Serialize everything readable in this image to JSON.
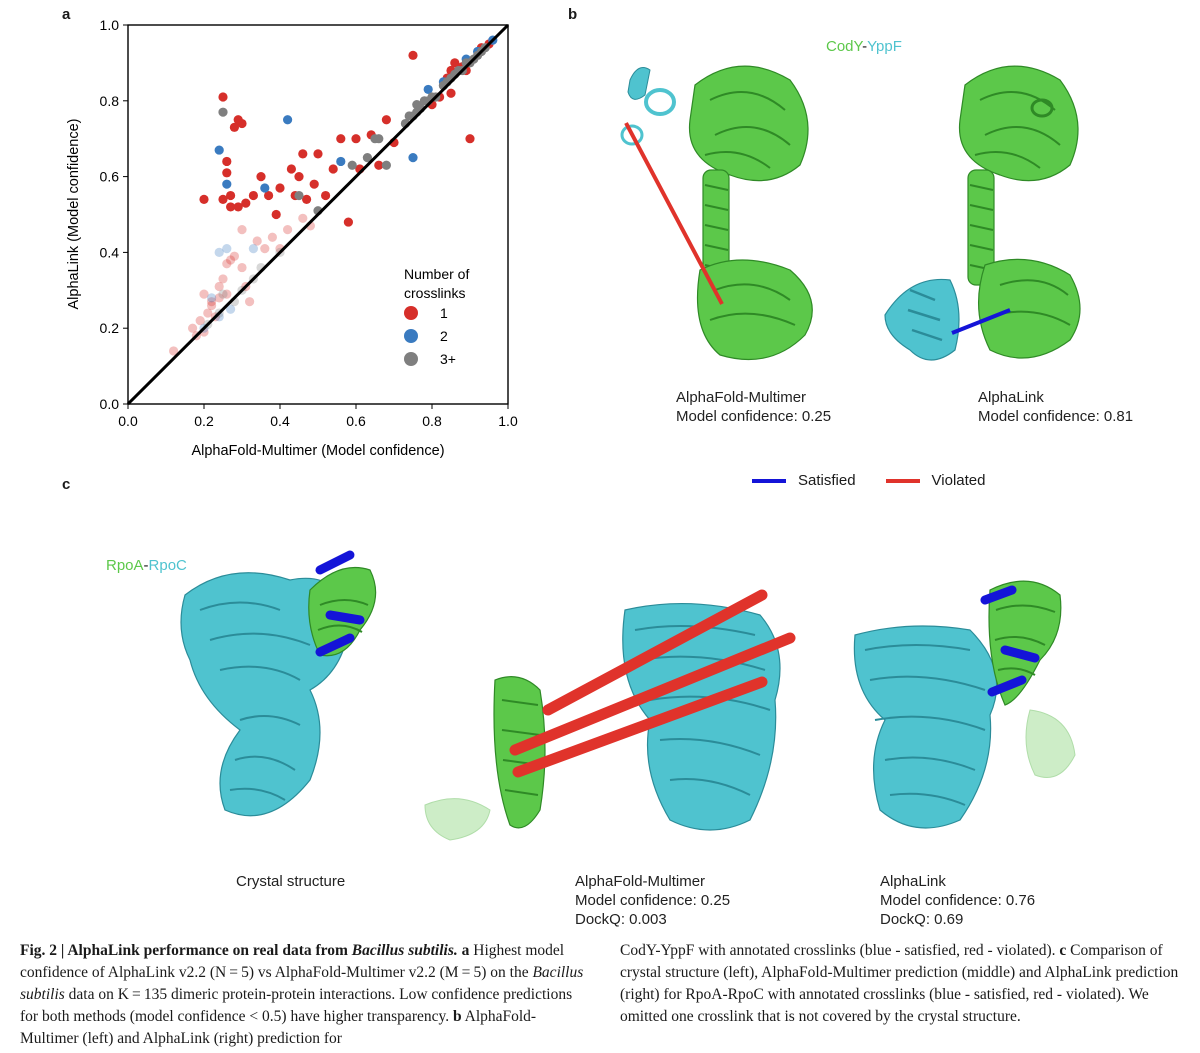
{
  "panel_labels": {
    "a": "a",
    "b": "b",
    "c": "c"
  },
  "chart_data": {
    "type": "scatter",
    "xlabel": "AlphaFold-Multimer (Model confidence)",
    "ylabel": "AlphaLink (Model confidence)",
    "xlim": [
      0.0,
      1.0
    ],
    "ylim": [
      0.0,
      1.0
    ],
    "xticks": [
      "0.0",
      "0.2",
      "0.4",
      "0.6",
      "0.8",
      "1.0"
    ],
    "yticks": [
      "0.0",
      "0.2",
      "0.4",
      "0.6",
      "0.8",
      "1.0"
    ],
    "diagonal": true,
    "legend": {
      "title": "Number of crosslinks",
      "entries": [
        "1",
        "2",
        "3+"
      ],
      "placement": "bottom-right"
    },
    "series": [
      {
        "name": "1",
        "color": "#d62f2a",
        "points": [
          [
            0.25,
            0.81
          ],
          [
            0.2,
            0.54
          ],
          [
            0.25,
            0.54
          ],
          [
            0.26,
            0.61
          ],
          [
            0.26,
            0.64
          ],
          [
            0.28,
            0.73
          ],
          [
            0.3,
            0.74
          ],
          [
            0.29,
            0.75
          ],
          [
            0.27,
            0.55
          ],
          [
            0.33,
            0.55
          ],
          [
            0.31,
            0.53
          ],
          [
            0.35,
            0.6
          ],
          [
            0.37,
            0.55
          ],
          [
            0.39,
            0.5
          ],
          [
            0.4,
            0.57
          ],
          [
            0.43,
            0.62
          ],
          [
            0.44,
            0.55
          ],
          [
            0.45,
            0.6
          ],
          [
            0.46,
            0.66
          ],
          [
            0.47,
            0.54
          ],
          [
            0.49,
            0.58
          ],
          [
            0.5,
            0.66
          ],
          [
            0.52,
            0.55
          ],
          [
            0.54,
            0.62
          ],
          [
            0.56,
            0.7
          ],
          [
            0.58,
            0.48
          ],
          [
            0.6,
            0.7
          ],
          [
            0.61,
            0.62
          ],
          [
            0.64,
            0.71
          ],
          [
            0.66,
            0.63
          ],
          [
            0.68,
            0.75
          ],
          [
            0.7,
            0.69
          ],
          [
            0.75,
            0.92
          ],
          [
            0.8,
            0.79
          ],
          [
            0.82,
            0.81
          ],
          [
            0.84,
            0.86
          ],
          [
            0.86,
            0.9
          ],
          [
            0.88,
            0.89
          ],
          [
            0.85,
            0.82
          ],
          [
            0.9,
            0.7
          ],
          [
            0.93,
            0.94
          ],
          [
            0.95,
            0.95
          ],
          [
            0.89,
            0.88
          ],
          [
            0.85,
            0.88
          ],
          [
            0.12,
            0.14
          ],
          [
            0.17,
            0.2
          ],
          [
            0.18,
            0.18
          ],
          [
            0.19,
            0.22
          ],
          [
            0.2,
            0.29
          ],
          [
            0.21,
            0.24
          ],
          [
            0.22,
            0.26
          ],
          [
            0.23,
            0.23
          ],
          [
            0.24,
            0.28
          ],
          [
            0.25,
            0.33
          ],
          [
            0.26,
            0.29
          ],
          [
            0.27,
            0.38
          ],
          [
            0.28,
            0.39
          ],
          [
            0.29,
            0.52
          ],
          [
            0.3,
            0.46
          ],
          [
            0.31,
            0.31
          ],
          [
            0.32,
            0.27
          ],
          [
            0.34,
            0.43
          ],
          [
            0.36,
            0.41
          ],
          [
            0.38,
            0.44
          ],
          [
            0.4,
            0.41
          ],
          [
            0.42,
            0.46
          ],
          [
            0.46,
            0.49
          ],
          [
            0.48,
            0.47
          ],
          [
            0.27,
            0.52
          ],
          [
            0.22,
            0.27
          ],
          [
            0.3,
            0.36
          ],
          [
            0.2,
            0.19
          ],
          [
            0.26,
            0.37
          ],
          [
            0.24,
            0.31
          ]
        ]
      },
      {
        "name": "2",
        "color": "#3a7bc0",
        "points": [
          [
            0.24,
            0.67
          ],
          [
            0.26,
            0.58
          ],
          [
            0.36,
            0.57
          ],
          [
            0.42,
            0.75
          ],
          [
            0.56,
            0.64
          ],
          [
            0.75,
            0.65
          ],
          [
            0.79,
            0.83
          ],
          [
            0.83,
            0.85
          ],
          [
            0.89,
            0.91
          ],
          [
            0.96,
            0.96
          ],
          [
            0.92,
            0.93
          ],
          [
            0.24,
            0.4
          ],
          [
            0.26,
            0.41
          ],
          [
            0.22,
            0.28
          ],
          [
            0.27,
            0.25
          ],
          [
            0.24,
            0.23
          ],
          [
            0.33,
            0.41
          ],
          [
            0.2,
            0.2
          ]
        ]
      },
      {
        "name": "3+",
        "color": "#7f7f7f",
        "points": [
          [
            0.25,
            0.77
          ],
          [
            0.45,
            0.55
          ],
          [
            0.5,
            0.51
          ],
          [
            0.59,
            0.63
          ],
          [
            0.63,
            0.65
          ],
          [
            0.65,
            0.7
          ],
          [
            0.66,
            0.7
          ],
          [
            0.73,
            0.74
          ],
          [
            0.74,
            0.76
          ],
          [
            0.75,
            0.76
          ],
          [
            0.76,
            0.77
          ],
          [
            0.76,
            0.79
          ],
          [
            0.77,
            0.78
          ],
          [
            0.78,
            0.8
          ],
          [
            0.79,
            0.8
          ],
          [
            0.8,
            0.81
          ],
          [
            0.81,
            0.81
          ],
          [
            0.83,
            0.84
          ],
          [
            0.84,
            0.85
          ],
          [
            0.85,
            0.86
          ],
          [
            0.86,
            0.87
          ],
          [
            0.87,
            0.88
          ],
          [
            0.88,
            0.88
          ],
          [
            0.89,
            0.9
          ],
          [
            0.9,
            0.9
          ],
          [
            0.91,
            0.91
          ],
          [
            0.92,
            0.92
          ],
          [
            0.93,
            0.93
          ],
          [
            0.94,
            0.94
          ],
          [
            0.68,
            0.63
          ],
          [
            0.21,
            0.21
          ],
          [
            0.24,
            0.24
          ],
          [
            0.25,
            0.29
          ],
          [
            0.28,
            0.27
          ],
          [
            0.3,
            0.3
          ],
          [
            0.33,
            0.33
          ],
          [
            0.35,
            0.36
          ],
          [
            0.4,
            0.4
          ]
        ]
      }
    ],
    "low_confidence_threshold": 0.5
  },
  "panel_b": {
    "complex_names": [
      "CodY",
      "-",
      "YppF"
    ],
    "models": [
      {
        "method": "AlphaFold-Multimer",
        "confidence_label": "Model confidence: 0.25"
      },
      {
        "method": "AlphaLink",
        "confidence_label": "Model confidence: 0.81"
      }
    ],
    "crosslink_legend": [
      {
        "label": "Satisfied",
        "color": "#1414d8"
      },
      {
        "label": "Violated",
        "color": "#e0332b"
      }
    ]
  },
  "panel_c": {
    "complex_names": [
      "RpoA",
      "-",
      "RpoC"
    ],
    "structures": [
      {
        "title": "Crystal structure",
        "lines": []
      },
      {
        "title": "AlphaFold-Multimer",
        "lines": [
          "Model confidence: 0.25",
          "DockQ: 0.003"
        ]
      },
      {
        "title": "AlphaLink",
        "lines": [
          "Model confidence: 0.76",
          "DockQ: 0.69"
        ]
      }
    ]
  },
  "colors": {
    "green": "#5cc84a",
    "cyan": "#4fc3cf",
    "red": "#e0332b",
    "blue": "#1414d8"
  },
  "caption": {
    "fig_label": "Fig. 2 | AlphaLink performance on real data from ",
    "fig_species": "Bacillus subtilis.",
    "a_letter": "a",
    "a_text_1": " Highest model confidence of AlphaLink v2.2 (N = 5) vs AlphaFold-Multimer v2.2 (M = 5) on the ",
    "a_species": "Bacillus subtilis",
    "a_text_2": " data on K = 135 dimeric protein-protein interactions. Low confidence predictions for both methods (model confidence < 0.5) have higher transparency. ",
    "b_letter": "b",
    "b_text": " AlphaFold-Multimer (left) and AlphaLink (right) prediction for",
    "col2_text_1": "CodY-YppF with annotated crosslinks (blue - satisfied, red - violated). ",
    "c_letter": "c",
    "col2_text_2": " Comparison of crystal structure (left), AlphaFold-Multimer prediction (middle) and AlphaLink prediction (right) for RpoA-RpoC with annotated crosslinks (blue - satisfied, red - violated). We omitted one crosslink that is not covered by the crystal structure."
  }
}
